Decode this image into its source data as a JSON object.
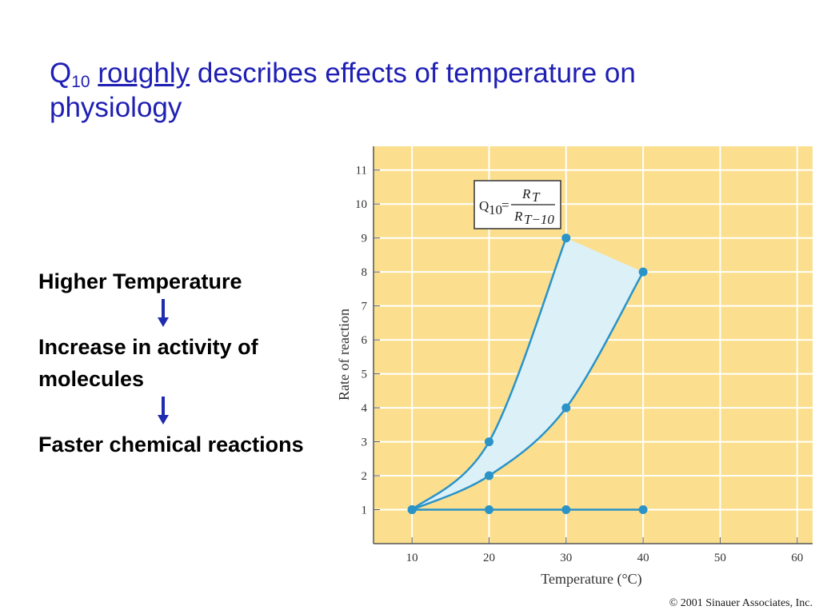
{
  "slide": {
    "title_q": "Q",
    "title_sub": "10",
    "title_underlined": "roughly",
    "title_rest": " describes effects of temperature on physiology",
    "steps": [
      "Higher Temperature",
      "Increase in activity of molecules",
      "Faster chemical reactions"
    ],
    "credit": "© 2001 Sinauer Associates, Inc."
  },
  "colors": {
    "title": "#1f1fb4",
    "arrow": "#1f2bb0",
    "plot_bg": "#fbdf8e",
    "grid": "#ffffff",
    "series": "#2a93c8",
    "fill": "#dcf0f8"
  },
  "chart_data": {
    "type": "line",
    "xlabel": "Temperature (°C)",
    "ylabel": "Rate of reaction",
    "xlim": [
      5,
      62
    ],
    "ylim": [
      0,
      11.7
    ],
    "xticks": [
      10,
      20,
      30,
      40,
      50,
      60
    ],
    "yticks": [
      1,
      2,
      3,
      4,
      5,
      6,
      7,
      8,
      9,
      10,
      11
    ],
    "grid": true,
    "formula": {
      "lhs": "Q",
      "lhs_sub": "10",
      "equals": "=",
      "numerator": "R",
      "numerator_sub": "T",
      "denominator": "R",
      "denominator_sub": "T−10"
    },
    "series": [
      {
        "x": [
          10,
          20,
          30
        ],
        "y": [
          1,
          3,
          9
        ]
      },
      {
        "x": [
          10,
          20,
          30,
          40
        ],
        "y": [
          1,
          2,
          4,
          8
        ]
      },
      {
        "x": [
          10,
          20,
          30,
          40
        ],
        "y": [
          1,
          1,
          1,
          1
        ]
      }
    ]
  }
}
